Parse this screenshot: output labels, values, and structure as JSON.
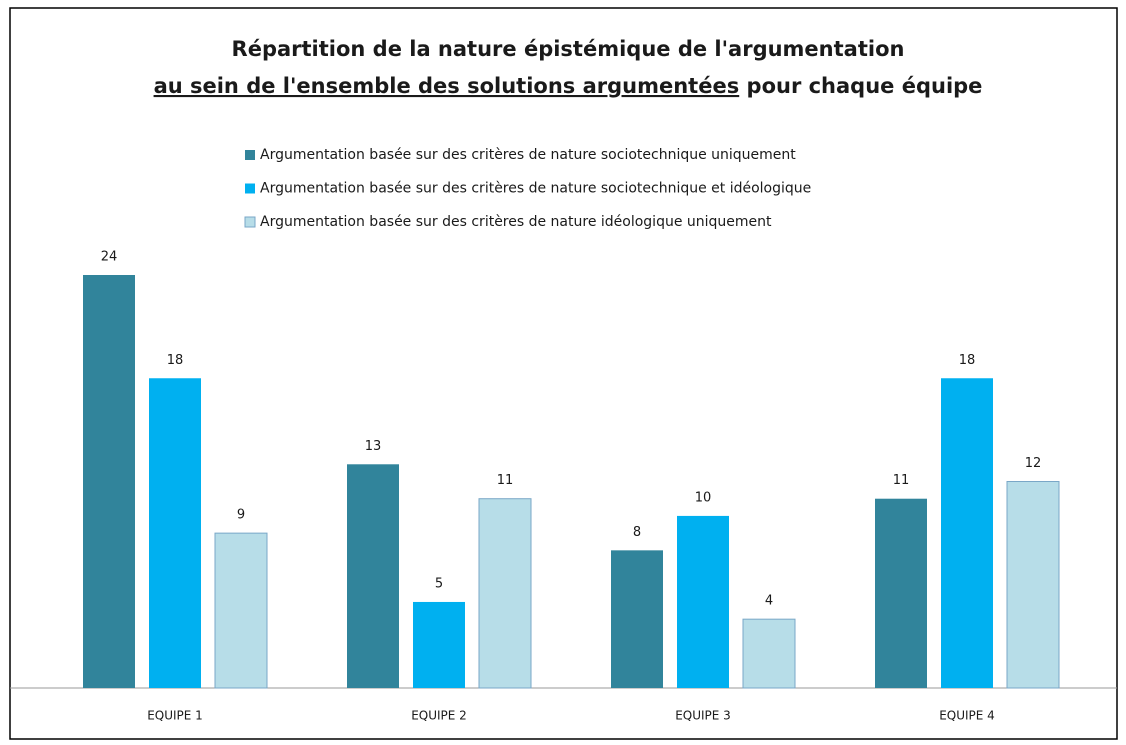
{
  "chart_data": {
    "type": "bar",
    "title": [
      "Répartition de la nature épistémique de l'argumentation",
      "au sein de l'ensemble des solutions argumentées",
      "pour chaque équipe"
    ],
    "categories": [
      "EQUIPE 1",
      "EQUIPE 2",
      "EQUIPE 3",
      "EQUIPE 4"
    ],
    "series": [
      {
        "name": "Argumentation basée sur des critères de nature sociotechnique uniquement",
        "color": "#31849b",
        "values": [
          24,
          13,
          8,
          11
        ]
      },
      {
        "name": "Argumentation basée sur des critères de nature sociotechnique et idéologique",
        "color": "#00b0f0",
        "values": [
          18,
          5,
          10,
          18
        ]
      },
      {
        "name": "Argumentation basée sur des critères de nature idéologique uniquement",
        "color": "#b7dde8",
        "values": [
          9,
          11,
          4,
          12
        ]
      }
    ],
    "legend": "top"
  }
}
